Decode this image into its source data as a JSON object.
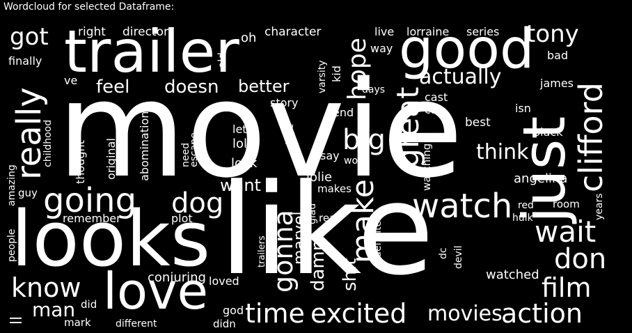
{
  "caption": "Wordcloud for selected Dataframe:",
  "wordcloud": {
    "words": [
      "movie",
      "like",
      "looks",
      "trailer",
      "good",
      "just",
      "love",
      "clifford",
      "going",
      "watch",
      "really",
      "hope",
      "great",
      "wait",
      "make",
      "gonna",
      "dog",
      "big",
      "know",
      "tony",
      "film",
      "don",
      "action",
      "excited",
      "time",
      "movies",
      "got",
      "actually",
      "better",
      "feel",
      "doesn",
      "think",
      "want",
      "man",
      "marvel",
      "damn",
      "shit",
      "character",
      "director",
      "right",
      "oh",
      "live",
      "lorraine",
      "series",
      "finally",
      "ve",
      "old",
      "varsity",
      "kid",
      "way",
      "bad",
      "cast",
      "james",
      "days",
      "story",
      "end",
      "car",
      "isn",
      "best",
      "black",
      "childhood",
      "thought",
      "original",
      "abomination",
      "need",
      "escape",
      "let",
      "lol",
      "kate",
      "say",
      "wong",
      "look",
      "jolie",
      "makes",
      "watching",
      "angelina",
      "years",
      "amazing",
      "guy",
      "remember",
      "plot",
      "glad",
      "real",
      "definitely",
      "red",
      "hulk",
      "room",
      "people",
      "trailers",
      "dc",
      "devil",
      "conjuring",
      "loved",
      "watched",
      "ll",
      "mark",
      "did",
      "different",
      "god",
      "didn"
    ]
  }
}
